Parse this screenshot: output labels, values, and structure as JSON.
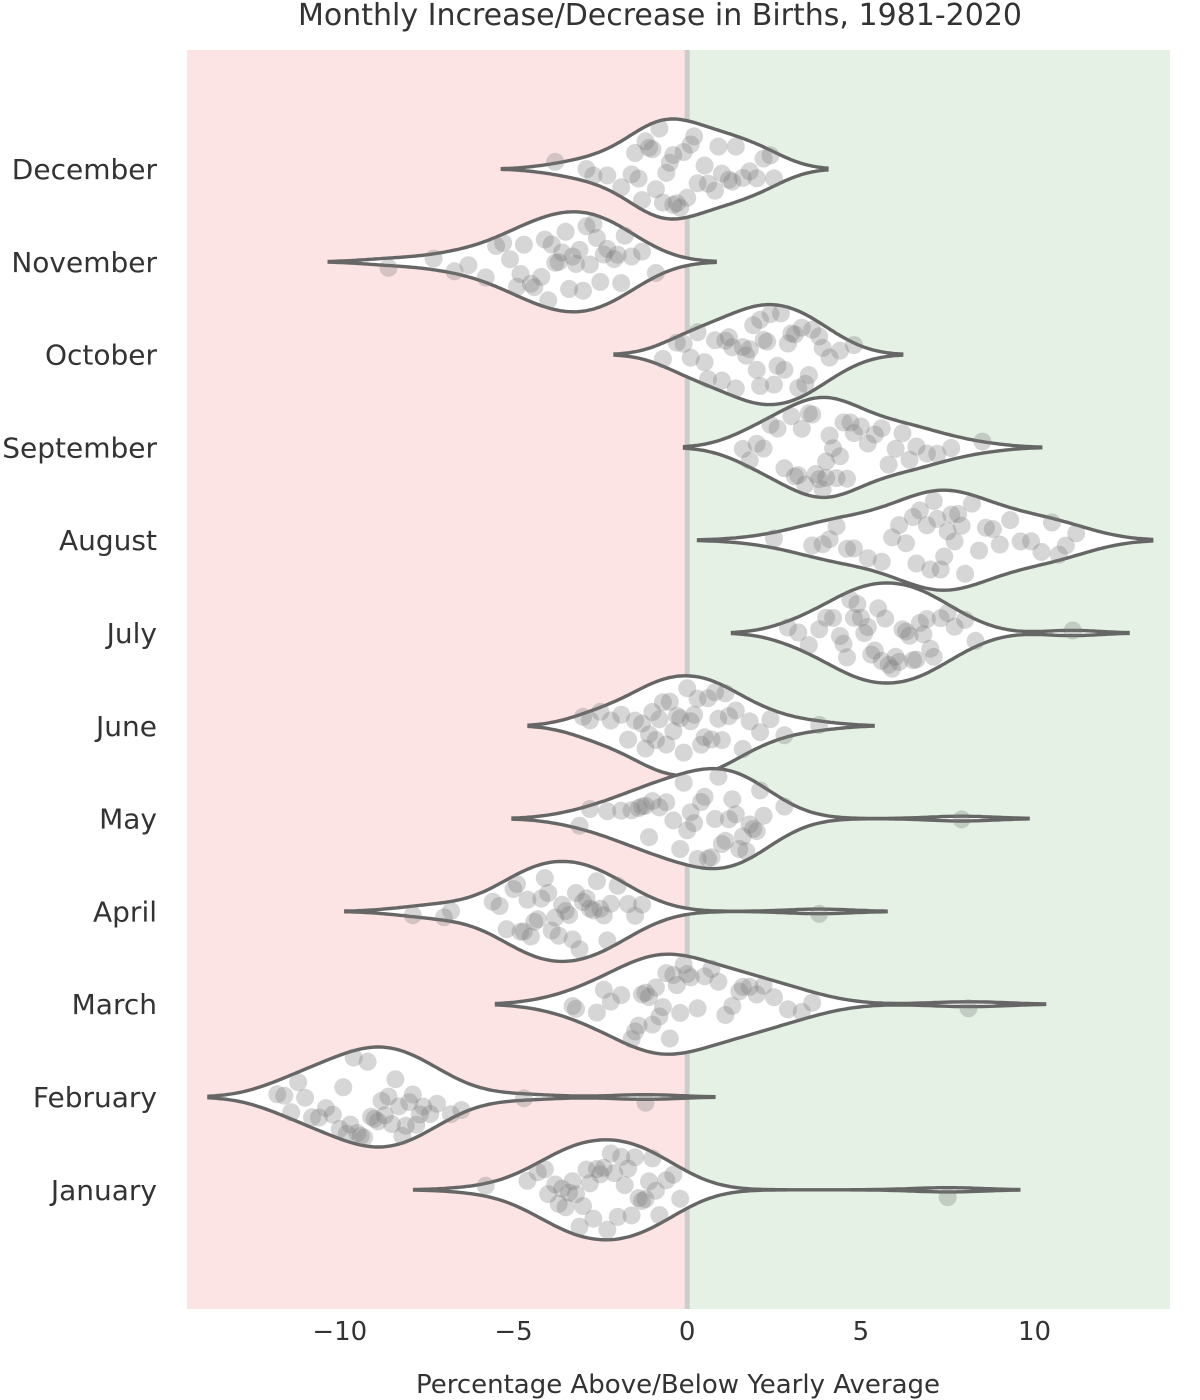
{
  "chart_data": {
    "type": "violin",
    "title": "Monthly Increase/Decrease in Births, 1981-2020",
    "xlabel": "Percentage Above/Below Yearly Average",
    "ylabel": "",
    "xlim": [
      -14.4,
      13.9
    ],
    "xticks": [
      -10,
      -5,
      0,
      5,
      10
    ],
    "xtick_labels": [
      "−10",
      "−5",
      "0",
      "5",
      "10"
    ],
    "zero_line": 0,
    "background": {
      "negative": "#fde4e4",
      "positive": "#e4f1e4"
    },
    "colors": {
      "violin_fill": "#ffffff",
      "violin_edge": "#666666",
      "points": "#777777",
      "text": "#333333"
    },
    "grid": false,
    "legend": "none",
    "categories": [
      "December",
      "November",
      "October",
      "September",
      "August",
      "July",
      "June",
      "May",
      "April",
      "March",
      "February",
      "January"
    ],
    "series": [
      {
        "name": "December",
        "values": [
          -3.8,
          -2.9,
          -2.7,
          -2.3,
          -1.9,
          -1.6,
          -1.5,
          -1.4,
          -1.3,
          -1.2,
          -1.1,
          -1.0,
          -0.9,
          -0.8,
          -0.7,
          -0.6,
          -0.5,
          -0.4,
          -0.4,
          -0.3,
          -0.2,
          -0.1,
          0.0,
          0.1,
          0.2,
          0.3,
          0.5,
          0.6,
          0.8,
          0.9,
          1.0,
          1.2,
          1.3,
          1.4,
          1.6,
          1.8,
          2.0,
          2.2,
          2.4,
          2.5
        ]
      },
      {
        "name": "November",
        "values": [
          -8.6,
          -7.3,
          -6.7,
          -6.3,
          -5.8,
          -5.5,
          -5.3,
          -5.1,
          -4.9,
          -4.8,
          -4.7,
          -4.5,
          -4.4,
          -4.2,
          -4.1,
          -4.0,
          -3.9,
          -3.8,
          -3.7,
          -3.6,
          -3.5,
          -3.4,
          -3.3,
          -3.2,
          -3.1,
          -3.0,
          -2.9,
          -2.8,
          -2.7,
          -2.6,
          -2.5,
          -2.4,
          -2.3,
          -2.1,
          -2.0,
          -1.9,
          -1.8,
          -1.6,
          -1.3,
          -0.9
        ]
      },
      {
        "name": "October",
        "values": [
          -0.7,
          -0.3,
          -0.1,
          0.1,
          0.3,
          0.5,
          0.6,
          0.8,
          1.0,
          1.1,
          1.2,
          1.3,
          1.4,
          1.6,
          1.7,
          1.8,
          1.9,
          2.0,
          2.1,
          2.1,
          2.2,
          2.3,
          2.4,
          2.5,
          2.6,
          2.7,
          2.8,
          2.9,
          3.0,
          3.1,
          3.2,
          3.3,
          3.4,
          3.5,
          3.6,
          3.8,
          3.9,
          4.1,
          4.4,
          4.8
        ]
      },
      {
        "name": "September",
        "values": [
          1.6,
          1.8,
          2.0,
          2.2,
          2.4,
          2.6,
          2.8,
          3.0,
          3.1,
          3.2,
          3.3,
          3.4,
          3.5,
          3.6,
          3.7,
          3.8,
          3.9,
          4.0,
          4.0,
          4.1,
          4.2,
          4.3,
          4.4,
          4.5,
          4.6,
          4.7,
          4.8,
          5.0,
          5.2,
          5.4,
          5.6,
          5.8,
          6.0,
          6.2,
          6.4,
          6.6,
          6.9,
          7.2,
          7.6,
          8.5
        ]
      },
      {
        "name": "August",
        "values": [
          2.5,
          3.6,
          3.9,
          4.1,
          4.3,
          4.6,
          4.8,
          5.2,
          5.6,
          5.9,
          6.1,
          6.3,
          6.5,
          6.6,
          6.7,
          6.9,
          7.0,
          7.1,
          7.2,
          7.3,
          7.4,
          7.5,
          7.6,
          7.7,
          7.8,
          7.9,
          8.0,
          8.2,
          8.4,
          8.6,
          8.8,
          9.0,
          9.3,
          9.6,
          9.9,
          10.2,
          10.5,
          10.7,
          10.9,
          11.2
        ]
      },
      {
        "name": "July",
        "values": [
          2.9,
          3.2,
          3.5,
          3.8,
          4.0,
          4.2,
          4.4,
          4.5,
          4.6,
          4.7,
          4.8,
          4.9,
          5.0,
          5.1,
          5.2,
          5.3,
          5.4,
          5.5,
          5.6,
          5.7,
          5.8,
          5.9,
          6.0,
          6.1,
          6.2,
          6.3,
          6.4,
          6.5,
          6.6,
          6.7,
          6.8,
          6.9,
          7.0,
          7.1,
          7.3,
          7.5,
          7.7,
          8.0,
          8.3,
          11.1
        ]
      },
      {
        "name": "June",
        "values": [
          -3.0,
          -2.8,
          -2.5,
          -2.2,
          -1.9,
          -1.7,
          -1.5,
          -1.3,
          -1.2,
          -1.1,
          -1.0,
          -0.9,
          -0.8,
          -0.7,
          -0.6,
          -0.5,
          -0.4,
          -0.3,
          -0.2,
          -0.1,
          0.0,
          0.1,
          0.2,
          0.3,
          0.4,
          0.5,
          0.6,
          0.7,
          0.8,
          0.9,
          1.0,
          1.1,
          1.2,
          1.4,
          1.6,
          1.8,
          2.1,
          2.4,
          2.8,
          3.8
        ]
      },
      {
        "name": "May",
        "values": [
          -3.1,
          -2.8,
          -2.3,
          -1.9,
          -1.6,
          -1.4,
          -1.3,
          -1.2,
          -1.1,
          -1.0,
          -0.8,
          -0.6,
          -0.4,
          -0.2,
          -0.1,
          0.0,
          0.1,
          0.2,
          0.3,
          0.4,
          0.5,
          0.6,
          0.7,
          0.8,
          0.9,
          1.0,
          1.1,
          1.2,
          1.3,
          1.4,
          1.5,
          1.6,
          1.7,
          1.8,
          1.9,
          2.0,
          2.1,
          2.2,
          2.8,
          7.9
        ]
      },
      {
        "name": "April",
        "values": [
          -7.9,
          -7.0,
          -6.8,
          -5.6,
          -5.4,
          -5.2,
          -5.0,
          -4.9,
          -4.8,
          -4.7,
          -4.6,
          -4.5,
          -4.4,
          -4.3,
          -4.2,
          -4.1,
          -4.0,
          -3.9,
          -3.8,
          -3.7,
          -3.6,
          -3.5,
          -3.4,
          -3.3,
          -3.2,
          -3.1,
          -3.0,
          -2.9,
          -2.8,
          -2.7,
          -2.6,
          -2.5,
          -2.4,
          -2.3,
          -2.2,
          -2.0,
          -1.7,
          -1.5,
          -1.3,
          3.8
        ]
      },
      {
        "name": "March",
        "values": [
          -3.3,
          -3.2,
          -2.6,
          -2.4,
          -2.2,
          -1.9,
          -1.6,
          -1.5,
          -1.4,
          -1.3,
          -1.2,
          -1.1,
          -1.0,
          -0.9,
          -0.8,
          -0.7,
          -0.6,
          -0.5,
          -0.4,
          -0.3,
          -0.2,
          -0.1,
          0.0,
          0.1,
          0.3,
          0.5,
          0.7,
          0.9,
          1.1,
          1.3,
          1.5,
          1.6,
          1.8,
          2.0,
          2.2,
          2.5,
          2.9,
          3.3,
          3.6,
          8.1
        ]
      },
      {
        "name": "February",
        "values": [
          -11.8,
          -11.6,
          -11.4,
          -11.2,
          -11.0,
          -10.8,
          -10.6,
          -10.4,
          -10.2,
          -10.0,
          -9.9,
          -9.8,
          -9.7,
          -9.6,
          -9.5,
          -9.4,
          -9.3,
          -9.2,
          -9.1,
          -9.0,
          -8.9,
          -8.8,
          -8.7,
          -8.6,
          -8.5,
          -8.4,
          -8.3,
          -8.2,
          -8.1,
          -8.0,
          -7.9,
          -7.8,
          -7.7,
          -7.6,
          -7.4,
          -7.2,
          -6.8,
          -6.5,
          -4.7,
          -1.2
        ]
      },
      {
        "name": "January",
        "values": [
          -5.8,
          -4.6,
          -4.3,
          -4.1,
          -4.0,
          -3.8,
          -3.7,
          -3.6,
          -3.5,
          -3.4,
          -3.3,
          -3.2,
          -3.1,
          -3.0,
          -2.9,
          -2.8,
          -2.7,
          -2.6,
          -2.5,
          -2.4,
          -2.3,
          -2.2,
          -2.1,
          -2.0,
          -1.9,
          -1.8,
          -1.7,
          -1.6,
          -1.5,
          -1.4,
          -1.3,
          -1.2,
          -1.1,
          -1.0,
          -0.9,
          -0.8,
          -0.6,
          -0.4,
          -0.2,
          7.5
        ]
      }
    ]
  }
}
